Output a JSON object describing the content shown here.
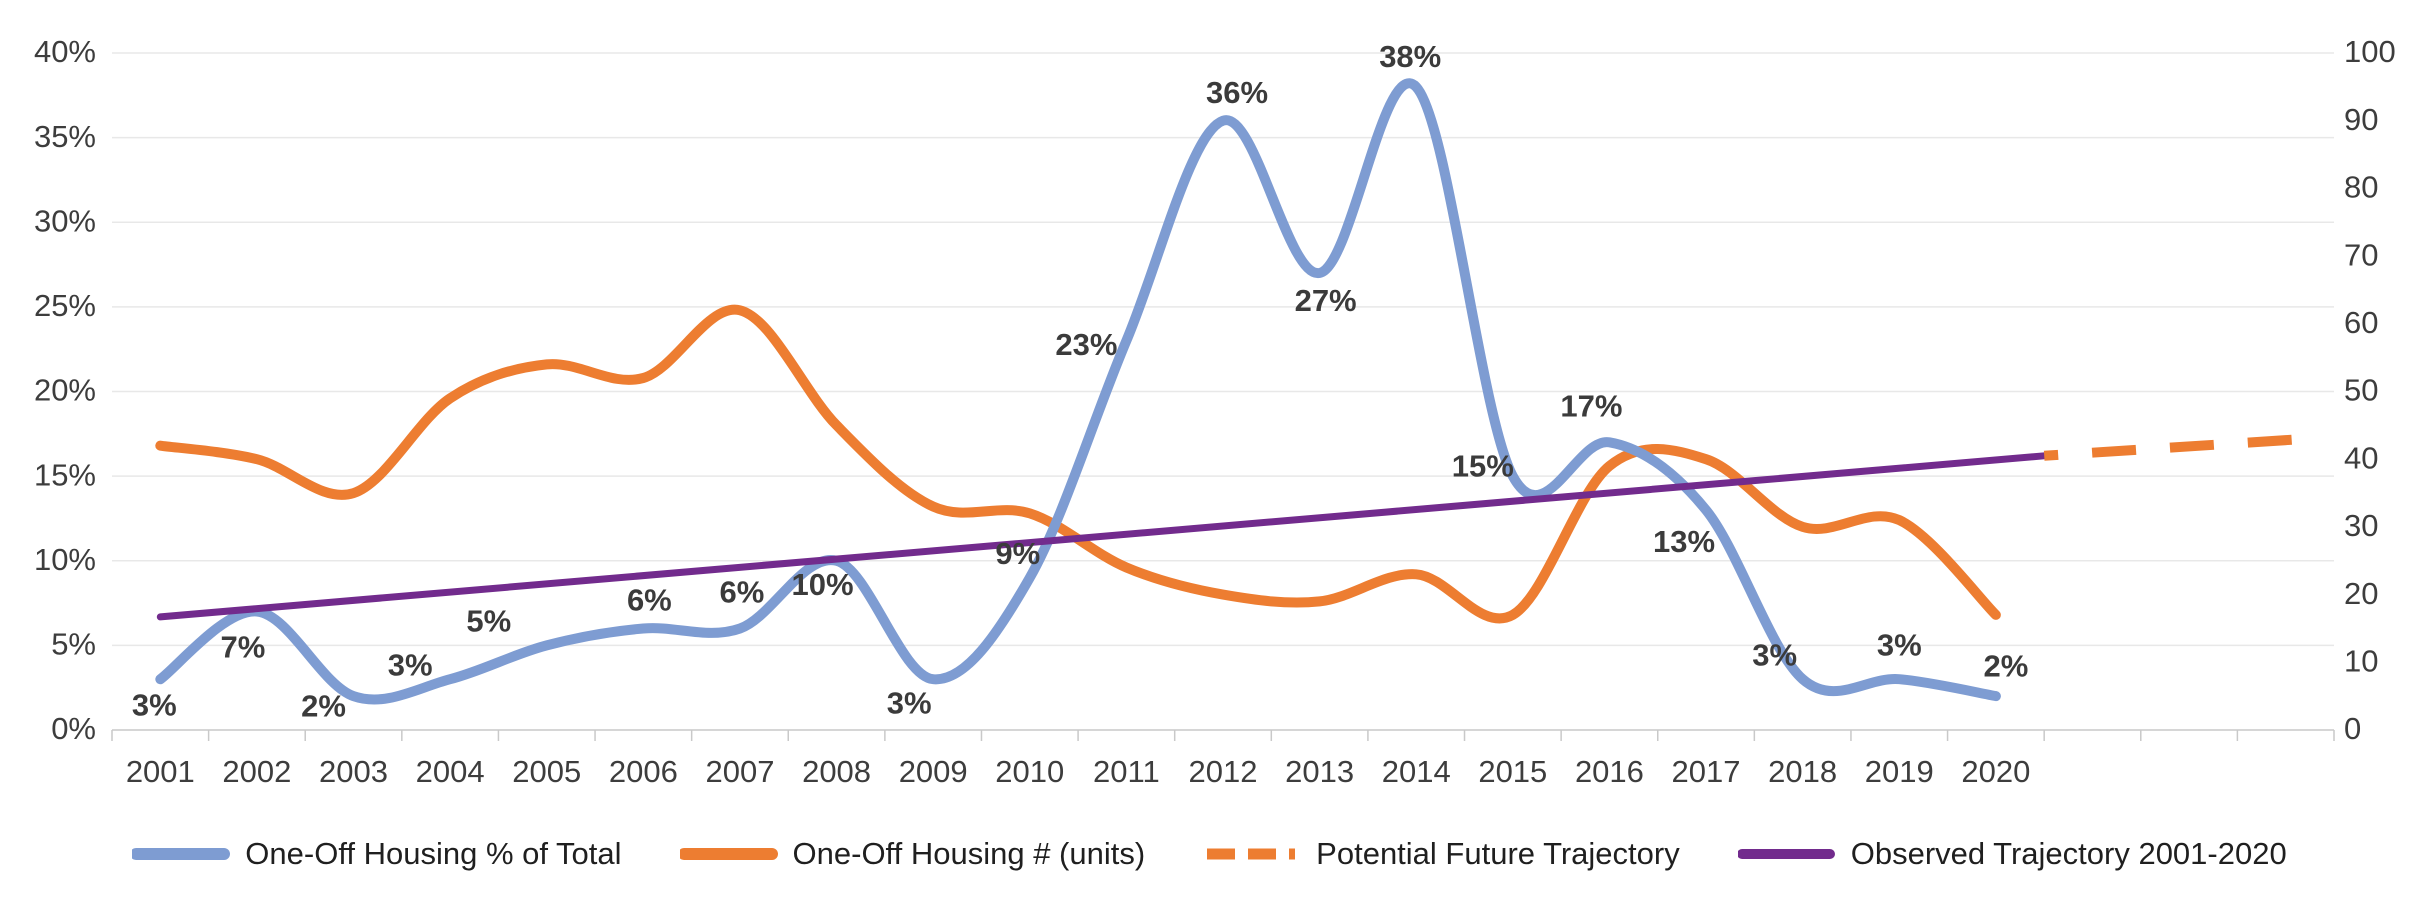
{
  "chart_data": {
    "type": "line",
    "title": "",
    "x_categories": [
      "2001",
      "2002",
      "2003",
      "2004",
      "2005",
      "2006",
      "2007",
      "2008",
      "2009",
      "2010",
      "2011",
      "2012",
      "2013",
      "2014",
      "2015",
      "2016",
      "2017",
      "2018",
      "2019",
      "2020"
    ],
    "future_unlabeled_slots": 3,
    "axes": {
      "left": {
        "min": 0,
        "max": 40,
        "step": 5,
        "unit": "%",
        "tick_labels": [
          "0%",
          "5%",
          "10%",
          "15%",
          "20%",
          "25%",
          "30%",
          "35%",
          "40%"
        ]
      },
      "right": {
        "min": 0,
        "max": 100,
        "step": 10,
        "tick_labels": [
          "0",
          "10",
          "20",
          "30",
          "40",
          "50",
          "60",
          "70",
          "80",
          "90",
          "100"
        ]
      }
    },
    "grid": {
      "horizontal": true,
      "vertical": false
    },
    "legend_position": "bottom",
    "series": [
      {
        "name": "One-Off Housing % of Total",
        "axis": "left",
        "line_style": "solid",
        "smooth": true,
        "color": "#7E9CD2",
        "stroke_width": 10,
        "values": [
          3,
          7,
          2,
          3,
          5,
          6,
          6,
          10,
          3,
          9,
          23,
          36,
          27,
          38,
          15,
          17,
          13,
          3,
          3,
          2
        ],
        "point_labels": [
          "3%",
          "7%",
          "2%",
          "3%",
          "5%",
          "6%",
          "6%",
          "10%",
          "3%",
          "9%",
          "23%",
          "36%",
          "27%",
          "38%",
          "15%",
          "17%",
          "13%",
          "3%",
          "3%",
          "2%"
        ],
        "label_offsets": [
          [
            -6,
            28
          ],
          [
            -14,
            38
          ],
          [
            -30,
            12
          ],
          [
            -40,
            -12
          ],
          [
            -58,
            -22
          ],
          [
            6,
            -26
          ],
          [
            2,
            -34
          ],
          [
            -14,
            26
          ],
          [
            -24,
            26
          ],
          [
            -12,
            -22
          ],
          [
            -40,
            6
          ],
          [
            14,
            -26
          ],
          [
            6,
            30
          ],
          [
            -6,
            -28
          ],
          [
            -30,
            -8
          ],
          [
            -18,
            -34
          ],
          [
            -22,
            34
          ],
          [
            -28,
            -22
          ],
          [
            0,
            -32
          ],
          [
            10,
            -28
          ]
        ]
      },
      {
        "name": "One-Off Housing # (units)",
        "axis": "right",
        "line_style": "solid",
        "smooth": true,
        "color": "#ED7D31",
        "stroke_width": 10,
        "values": [
          42,
          40,
          35,
          49,
          54,
          52,
          62,
          45,
          33,
          32,
          24,
          20,
          19,
          23,
          17,
          39,
          40,
          30,
          31,
          17
        ]
      },
      {
        "name": "Potential Future Trajectory",
        "axis": "right",
        "line_style": "dashed",
        "smooth": false,
        "color": "#ED7D31",
        "stroke_width": 10,
        "x_years": [
          2020.5,
          2023.2
        ],
        "values": [
          40.5,
          43
        ]
      },
      {
        "name": "Observed Trajectory 2001-2020",
        "axis": "right",
        "line_style": "solid",
        "smooth": false,
        "color": "#722B8D",
        "stroke_width": 7,
        "x_years": [
          2001,
          2020.5
        ],
        "values": [
          16.7,
          40.5
        ]
      }
    ],
    "colors": {
      "background": "#FFFFFF",
      "gridline": "#E8E8E8",
      "axis_line": "#C9C9C9",
      "axis_text": "#3D3D3D",
      "data_label_text": "#3B3B3B"
    }
  }
}
